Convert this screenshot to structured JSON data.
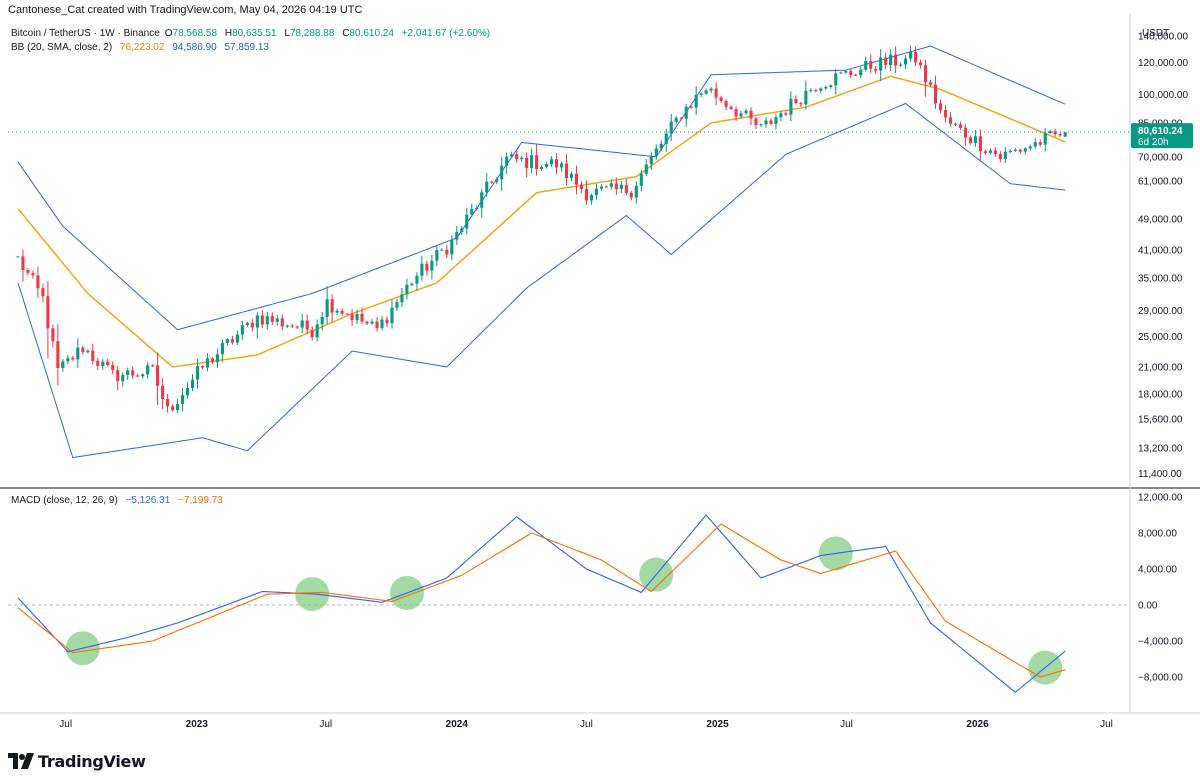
{
  "header": {
    "attribution": "Cantonese_Cat created with TradingView.com, May 04, 2026 04:19 UTC"
  },
  "symbol_legend": {
    "symbol": "Bitcoin / TetherUS · 1W · Binance",
    "open_key": "O",
    "open": "78,568.58",
    "high_key": "H",
    "high": "80,635.51",
    "low_key": "L",
    "low": "78,288.88",
    "close_key": "C",
    "close": "80,610.24",
    "change": "+2,041.67 (+2.60%)"
  },
  "bb_legend": {
    "label": "BB (20, SMA, close, 2)",
    "basis": "76,223.02",
    "upper": "94,586.90",
    "lower": "57,859.13"
  },
  "macd_legend": {
    "label": "MACD (close, 12, 26, 9)",
    "macd": "−5,126.31",
    "signal": "−7,199.73"
  },
  "currency": "USDT",
  "price_label": {
    "value": "80,610.24",
    "countdown": "6d 20h"
  },
  "footer": {
    "brand": "TradingView"
  },
  "colors": {
    "up": "#089981",
    "down": "#f23645",
    "bands": "#2962ff",
    "basis": "#f7a21b",
    "macd": "#2962ff",
    "signal": "#ff6d00",
    "highlight": "#7cc97c",
    "price_line": "#089981"
  },
  "chart_data": [
    {
      "type": "candlestick",
      "title": "Bitcoin / TetherUS · 1W · Binance",
      "indicator": "BB (20, SMA, close, 2)",
      "y_scale": "log",
      "ylim": [
        10500,
        155000
      ],
      "y_ticks": [
        "140,000.00",
        "120,000.00",
        "100,000.00",
        "85,000.00",
        "70,000.00",
        "61,000.00",
        "49,000.00",
        "41,000.00",
        "35,000.00",
        "29,000.00",
        "25,000.00",
        "21,000.00",
        "18,000.00",
        "15,600.00",
        "13,200.00",
        "11,400.00"
      ],
      "x_ticks": [
        "Jul",
        "2023",
        "Jul",
        "2024",
        "Jul",
        "2025",
        "Jul",
        "2026",
        "Jul"
      ],
      "key_points": {
        "close_path": [
          [
            "2022-04-25",
            39000
          ],
          [
            "2022-05-30",
            31000
          ],
          [
            "2022-06-20",
            20500
          ],
          [
            "2022-07-25",
            23500
          ],
          [
            "2022-09-05",
            20000
          ],
          [
            "2022-10-31",
            20500
          ],
          [
            "2022-11-21",
            16300
          ],
          [
            "2023-01-09",
            21000
          ],
          [
            "2023-03-27",
            28000
          ],
          [
            "2023-06-12",
            26000
          ],
          [
            "2023-07-03",
            30500
          ],
          [
            "2023-09-11",
            26000
          ],
          [
            "2023-10-30",
            34500
          ],
          [
            "2023-12-25",
            43000
          ],
          [
            "2024-03-11",
            69000
          ],
          [
            "2024-05-20",
            67000
          ],
          [
            "2024-07-01",
            57000
          ],
          [
            "2024-09-02",
            58000
          ],
          [
            "2024-11-11",
            90000
          ],
          [
            "2024-12-16",
            104000
          ],
          [
            "2025-03-03",
            82000
          ],
          [
            "2025-05-19",
            106000
          ],
          [
            "2025-08-11",
            119000
          ],
          [
            "2025-10-06",
            123000
          ],
          [
            "2025-11-17",
            86000
          ],
          [
            "2026-02-02",
            70000
          ],
          [
            "2026-05-04",
            80610.24
          ]
        ]
      },
      "bollinger_basis_key": [
        [
          "2022-04-25",
          52000
        ],
        [
          "2022-08-01",
          32000
        ],
        [
          "2022-11-28",
          21000
        ],
        [
          "2023-03-27",
          22500
        ],
        [
          "2023-08-07",
          28500
        ],
        [
          "2023-12-04",
          34000
        ],
        [
          "2024-04-22",
          57000
        ],
        [
          "2024-09-09",
          62500
        ],
        [
          "2024-12-23",
          85000
        ],
        [
          "2025-05-05",
          93000
        ],
        [
          "2025-09-01",
          111000
        ],
        [
          "2025-11-10",
          103000
        ],
        [
          "2026-05-04",
          76223.02
        ]
      ],
      "bollinger_upper_key": [
        [
          "2022-04-25",
          68000
        ],
        [
          "2022-06-27",
          47000
        ],
        [
          "2022-12-05",
          26000
        ],
        [
          "2023-06-12",
          32000
        ],
        [
          "2024-01-01",
          44000
        ],
        [
          "2024-04-01",
          76000
        ],
        [
          "2024-10-07",
          70000
        ],
        [
          "2024-12-23",
          112000
        ],
        [
          "2025-06-30",
          115000
        ],
        [
          "2025-10-27",
          132000
        ],
        [
          "2026-05-04",
          94586.9
        ]
      ],
      "bollinger_lower_key": [
        [
          "2022-04-25",
          34000
        ],
        [
          "2022-07-11",
          12500
        ],
        [
          "2023-01-09",
          14000
        ],
        [
          "2023-03-13",
          13000
        ],
        [
          "2023-08-07",
          23000
        ],
        [
          "2023-12-18",
          21000
        ],
        [
          "2024-04-08",
          33000
        ],
        [
          "2024-08-26",
          50000
        ],
        [
          "2024-10-28",
          40000
        ],
        [
          "2025-04-07",
          71000
        ],
        [
          "2025-09-22",
          95000
        ],
        [
          "2026-02-16",
          60000
        ],
        [
          "2026-05-04",
          57859.13
        ]
      ],
      "last": {
        "open": 78568.58,
        "high": 80635.51,
        "low": 78288.88,
        "close": 80610.24
      }
    },
    {
      "type": "line",
      "title": "MACD (close, 12, 26, 9)",
      "ylim": [
        -12000,
        13000
      ],
      "y_ticks": [
        "12,000.00",
        "8,000.00",
        "4,000.00",
        "0.00",
        "−4,000.00",
        "−8,000.00"
      ],
      "series": [
        {
          "name": "MACD",
          "points": [
            [
              "2022-04-25",
              800
            ],
            [
              "2022-07-04",
              -5200
            ],
            [
              "2022-09-26",
              -3600
            ],
            [
              "2022-12-05",
              -2000
            ],
            [
              "2023-04-03",
              1500
            ],
            [
              "2023-06-19",
              1200
            ],
            [
              "2023-09-18",
              300
            ],
            [
              "2023-12-18",
              3000
            ],
            [
              "2024-03-25",
              9800
            ],
            [
              "2024-07-01",
              4000
            ],
            [
              "2024-09-16",
              1400
            ],
            [
              "2024-12-16",
              10000
            ],
            [
              "2025-03-03",
              3000
            ],
            [
              "2025-05-26",
              5500
            ],
            [
              "2025-08-25",
              6500
            ],
            [
              "2025-10-27",
              -2000
            ],
            [
              "2026-02-23",
              -9700
            ],
            [
              "2026-05-04",
              -5126.31
            ]
          ]
        },
        {
          "name": "Signal",
          "points": [
            [
              "2022-04-25",
              -300
            ],
            [
              "2022-07-11",
              -5300
            ],
            [
              "2022-10-31",
              -4000
            ],
            [
              "2023-04-10",
              1200
            ],
            [
              "2023-06-26",
              1400
            ],
            [
              "2023-10-02",
              400
            ],
            [
              "2024-01-08",
              3300
            ],
            [
              "2024-04-15",
              8000
            ],
            [
              "2024-07-22",
              5000
            ],
            [
              "2024-09-30",
              1500
            ],
            [
              "2025-01-06",
              9000
            ],
            [
              "2025-03-31",
              5000
            ],
            [
              "2025-05-26",
              3500
            ],
            [
              "2025-09-08",
              6000
            ],
            [
              "2025-11-17",
              -1800
            ],
            [
              "2026-03-30",
              -8000
            ],
            [
              "2026-05-04",
              -7199.73
            ]
          ]
        }
      ],
      "crossover_markers": [
        "2022-07-25",
        "2023-06-12",
        "2023-10-23",
        "2024-10-07",
        "2025-06-16",
        "2026-04-06"
      ]
    }
  ]
}
